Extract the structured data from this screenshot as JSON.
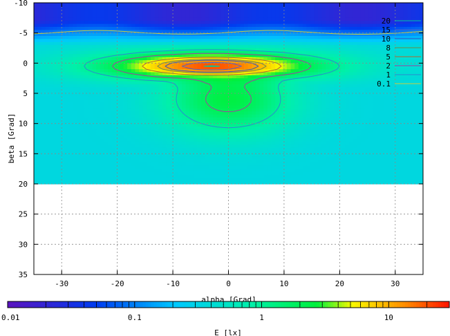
{
  "chart_data": {
    "type": "heatmap",
    "xlabel": "alpha [Grad]",
    "ylabel": "beta [Grad]",
    "colorbar_label": "E [lx]",
    "xlim": [
      -35,
      35
    ],
    "ylim": [
      -10,
      35
    ],
    "y_inverted": true,
    "grid": true,
    "xticks": [
      -30,
      -20,
      -10,
      0,
      10,
      20,
      30
    ],
    "yticks": [
      -10,
      -5,
      0,
      5,
      10,
      15,
      20,
      25,
      30,
      35
    ],
    "data_extent_beta": [
      -10,
      20
    ],
    "colorscale": "log",
    "colorbar_range": [
      0.01,
      30
    ],
    "colorbar_ticks": [
      {
        "value": 0.01,
        "label": "0.01"
      },
      {
        "value": 0.1,
        "label": "0.1"
      },
      {
        "value": 1,
        "label": "1"
      },
      {
        "value": 10,
        "label": "10"
      }
    ],
    "legend": {
      "position": "top-right",
      "entries": [
        {
          "label": "20",
          "color": "#00c8a0"
        },
        {
          "label": "15",
          "color": "#4a60d0"
        },
        {
          "label": "10",
          "color": "#3050c0"
        },
        {
          "label": "8",
          "color": "#6a8a4a"
        },
        {
          "label": "5",
          "color": "#b06830"
        },
        {
          "label": "2",
          "color": "#a040a0"
        },
        {
          "label": "1",
          "color": "#2a8ad0"
        },
        {
          "label": "0.1",
          "color": "#c8d040"
        }
      ]
    },
    "field": {
      "peak_lx": 25,
      "peak_center": [
        -3,
        0.5
      ],
      "core_halfwidth_alpha": 26,
      "core_halfwidth_beta": 2.8,
      "lobe_center_beta": 6,
      "lobe_halfwidth_alpha": 14,
      "lobe_halfwidth_beta": 7,
      "lobe_level_lx": 2.5,
      "background_lx": 0.35,
      "top_band_lx": 0.03
    }
  }
}
